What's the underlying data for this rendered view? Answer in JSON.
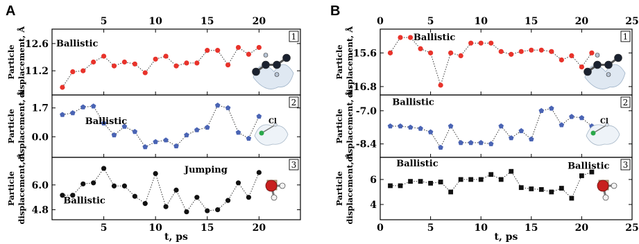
{
  "figure": {
    "panels": [
      {
        "letter": "A",
        "xlabel": "t, ps",
        "xlim": [
          0,
          24
        ],
        "xticks": [
          5,
          10,
          15,
          20
        ],
        "top_axis_labels": true,
        "subplots": [
          {
            "number": "1",
            "ylabel_line1": "Particle",
            "ylabel_line2": "displacement, Å",
            "ylim": [
              10.1,
              13.2
            ],
            "yticks": [
              {
                "v": 12.6,
                "label": "12.6"
              },
              {
                "v": 11.2,
                "label": "11.2"
              }
            ],
            "color": "#e8332b",
            "marker": "circle",
            "annotations": [
              {
                "text": "Ballistic",
                "x": 0.4,
                "y": 12.45
              }
            ],
            "molecule": "propane-molecule-icon",
            "series": {
              "x": [
                1,
                2,
                3,
                4,
                5,
                6,
                7,
                8,
                9,
                10,
                11,
                12,
                13,
                14,
                15,
                16,
                17,
                18,
                19,
                20
              ],
              "y": [
                10.35,
                11.15,
                11.2,
                11.65,
                11.95,
                11.45,
                11.65,
                11.55,
                11.1,
                11.8,
                11.95,
                11.45,
                11.6,
                11.6,
                12.25,
                12.25,
                11.5,
                12.4,
                12.05,
                12.4
              ]
            }
          },
          {
            "number": "2",
            "ylabel_line1": "Particle",
            "ylabel_line2": "displacement, Å",
            "ylim": [
              -1.05,
              2.3
            ],
            "yticks": [
              {
                "v": 1.7,
                "label": "1.7"
              },
              {
                "v": 0.0,
                "label": "0.0"
              }
            ],
            "color": "#4a64b4",
            "marker": "pentagon",
            "annotations": [
              {
                "text": "Ballistic",
                "x": 3.2,
                "y": 0.75
              }
            ],
            "molecule": "chloromethane-molecule-icon",
            "molecule_label": "Cl",
            "series": {
              "x": [
                1,
                2,
                3,
                4,
                5,
                6,
                7,
                8,
                9,
                10,
                11,
                12,
                13,
                14,
                15,
                16,
                17,
                18,
                19,
                20
              ],
              "y": [
                1.3,
                1.4,
                1.75,
                1.8,
                0.8,
                0.1,
                0.6,
                0.3,
                -0.6,
                -0.3,
                -0.2,
                -0.55,
                0.1,
                0.4,
                0.55,
                1.85,
                1.7,
                0.25,
                -0.1,
                1.2
              ]
            }
          },
          {
            "number": "3",
            "ylabel_line1": "Particle",
            "ylabel_line2": "displacement, Å",
            "ylim": [
              4.45,
              7.2
            ],
            "yticks": [
              {
                "v": 6.0,
                "label": "6.0"
              },
              {
                "v": 4.8,
                "label": "4.8"
              }
            ],
            "color": "#111111",
            "marker": "circle",
            "annotations": [
              {
                "text": "Jumping",
                "x": 12.8,
                "y": 6.6
              },
              {
                "text": "Ballistic",
                "x": 1.1,
                "y": 5.1
              }
            ],
            "molecule": "water-molecule-icon",
            "series": {
              "x": [
                1,
                2,
                3,
                4,
                5,
                6,
                7,
                8,
                9,
                10,
                11,
                12,
                13,
                14,
                15,
                16,
                17,
                18,
                19,
                20
              ],
              "y": [
                5.5,
                5.5,
                6.05,
                6.1,
                6.8,
                5.95,
                5.95,
                5.45,
                5.1,
                6.55,
                4.95,
                5.75,
                4.7,
                5.4,
                4.75,
                4.8,
                5.25,
                6.1,
                5.4,
                6.6
              ]
            }
          }
        ]
      },
      {
        "letter": "B",
        "xlabel": "t, ps",
        "xlim": [
          0,
          25
        ],
        "xticks": [
          0,
          5,
          10,
          15,
          20,
          25
        ],
        "top_axis_labels": true,
        "subplots": [
          {
            "number": "1",
            "ylabel_line1": "Particle",
            "ylabel_line2": "displacement, Å",
            "ylim": [
              -17.0,
              -14.85
            ],
            "yticks": [
              {
                "v": -15.6,
                "label": "-15.6"
              },
              {
                "v": -16.8,
                "label": "-16.8"
              }
            ],
            "color": "#e8332b",
            "marker": "circle",
            "annotations": [
              {
                "text": "Ballistic",
                "x": 3.3,
                "y": -15.15
              }
            ],
            "molecule": "propane-molecule-icon",
            "series": {
              "x": [
                1,
                2,
                3,
                4,
                5,
                6,
                7,
                8,
                9,
                10,
                11,
                12,
                13,
                14,
                15,
                16,
                17,
                18,
                19,
                20,
                21
              ],
              "y": [
                -15.6,
                -15.05,
                -15.05,
                -15.45,
                -15.6,
                -16.75,
                -15.6,
                -15.7,
                -15.25,
                -15.25,
                -15.25,
                -15.55,
                -15.65,
                -15.55,
                -15.5,
                -15.5,
                -15.55,
                -15.85,
                -15.7,
                -16.1,
                -15.6
              ]
            }
          },
          {
            "number": "2",
            "ylabel_line1": "Particle",
            "ylabel_line2": "displacement, Å",
            "ylim": [
              -8.85,
              -6.45
            ],
            "yticks": [
              {
                "v": -7.0,
                "label": "-7.0"
              },
              {
                "v": -8.4,
                "label": "-8.4"
              }
            ],
            "color": "#4a64b4",
            "marker": "pentagon",
            "annotations": [
              {
                "text": "Ballistic",
                "x": 1.2,
                "y": -6.75
              }
            ],
            "molecule": "chloromethane-molecule-icon",
            "molecule_label": "Cl",
            "series": {
              "x": [
                1,
                2,
                3,
                4,
                5,
                6,
                7,
                8,
                9,
                10,
                11,
                12,
                13,
                14,
                15,
                16,
                17,
                18,
                19,
                20,
                21
              ],
              "y": [
                -7.65,
                -7.65,
                -7.7,
                -7.75,
                -7.9,
                -8.55,
                -7.65,
                -8.35,
                -8.35,
                -8.35,
                -8.4,
                -7.65,
                -8.15,
                -7.85,
                -8.2,
                -7.0,
                -6.9,
                -7.6,
                -7.25,
                -7.3,
                -7.65
              ]
            }
          },
          {
            "number": "3",
            "ylabel_line1": "Particle",
            "ylabel_line2": "displacement, Å",
            "ylim": [
              3.0,
              7.55
            ],
            "yticks": [
              {
                "v": 6,
                "label": "6"
              },
              {
                "v": 4,
                "label": "4"
              }
            ],
            "color": "#111111",
            "marker": "square",
            "annotations": [
              {
                "text": "Ballistic",
                "x": 1.6,
                "y": 7.05
              },
              {
                "text": "Ballistic",
                "x": 18.6,
                "y": 6.85
              }
            ],
            "molecule": "water-molecule-icon",
            "series": {
              "x": [
                1,
                2,
                3,
                4,
                5,
                6,
                7,
                8,
                9,
                10,
                11,
                12,
                13,
                14,
                15,
                16,
                17,
                18,
                19,
                20,
                21
              ],
              "y": [
                5.5,
                5.5,
                5.85,
                5.85,
                5.7,
                5.8,
                5.0,
                6.0,
                6.0,
                6.0,
                6.4,
                6.0,
                6.65,
                5.35,
                5.25,
                5.2,
                5.0,
                5.3,
                4.5,
                6.3,
                6.6
              ]
            }
          }
        ]
      }
    ]
  }
}
